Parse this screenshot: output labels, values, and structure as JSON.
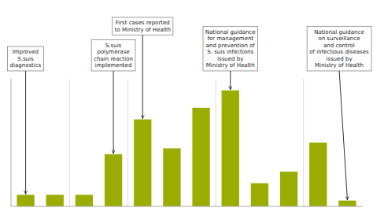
{
  "chart_data": {
    "type": "bar",
    "categories": [
      null,
      null,
      null,
      null,
      null,
      null,
      null,
      null,
      null,
      null,
      null,
      null
    ],
    "values": [
      2,
      2,
      2,
      9,
      15,
      10,
      17,
      20,
      4,
      6,
      11,
      1
    ],
    "color": "#9aad00",
    "ylim": [
      0,
      22
    ],
    "yticks": [],
    "tick_labels": false,
    "grid": false,
    "annotations": [
      {
        "text": "Improved\nS.suis\ndiagnostics",
        "index": 0
      },
      {
        "text": "S.suis\npolymerase\nchain reaction\nimplemented",
        "index": 3
      },
      {
        "text": "First cases reported\nto Ministry of Health",
        "index": 4
      },
      {
        "text": "National guidance\nfor management\nand prevention of\nS. suis infections\nissued by\nMinistry of Health",
        "index": 7
      },
      {
        "text": "National guidance\non surveillance\nand control\nof infectious diseases\nissued by\nMinistry of Health",
        "index": 11
      }
    ]
  }
}
